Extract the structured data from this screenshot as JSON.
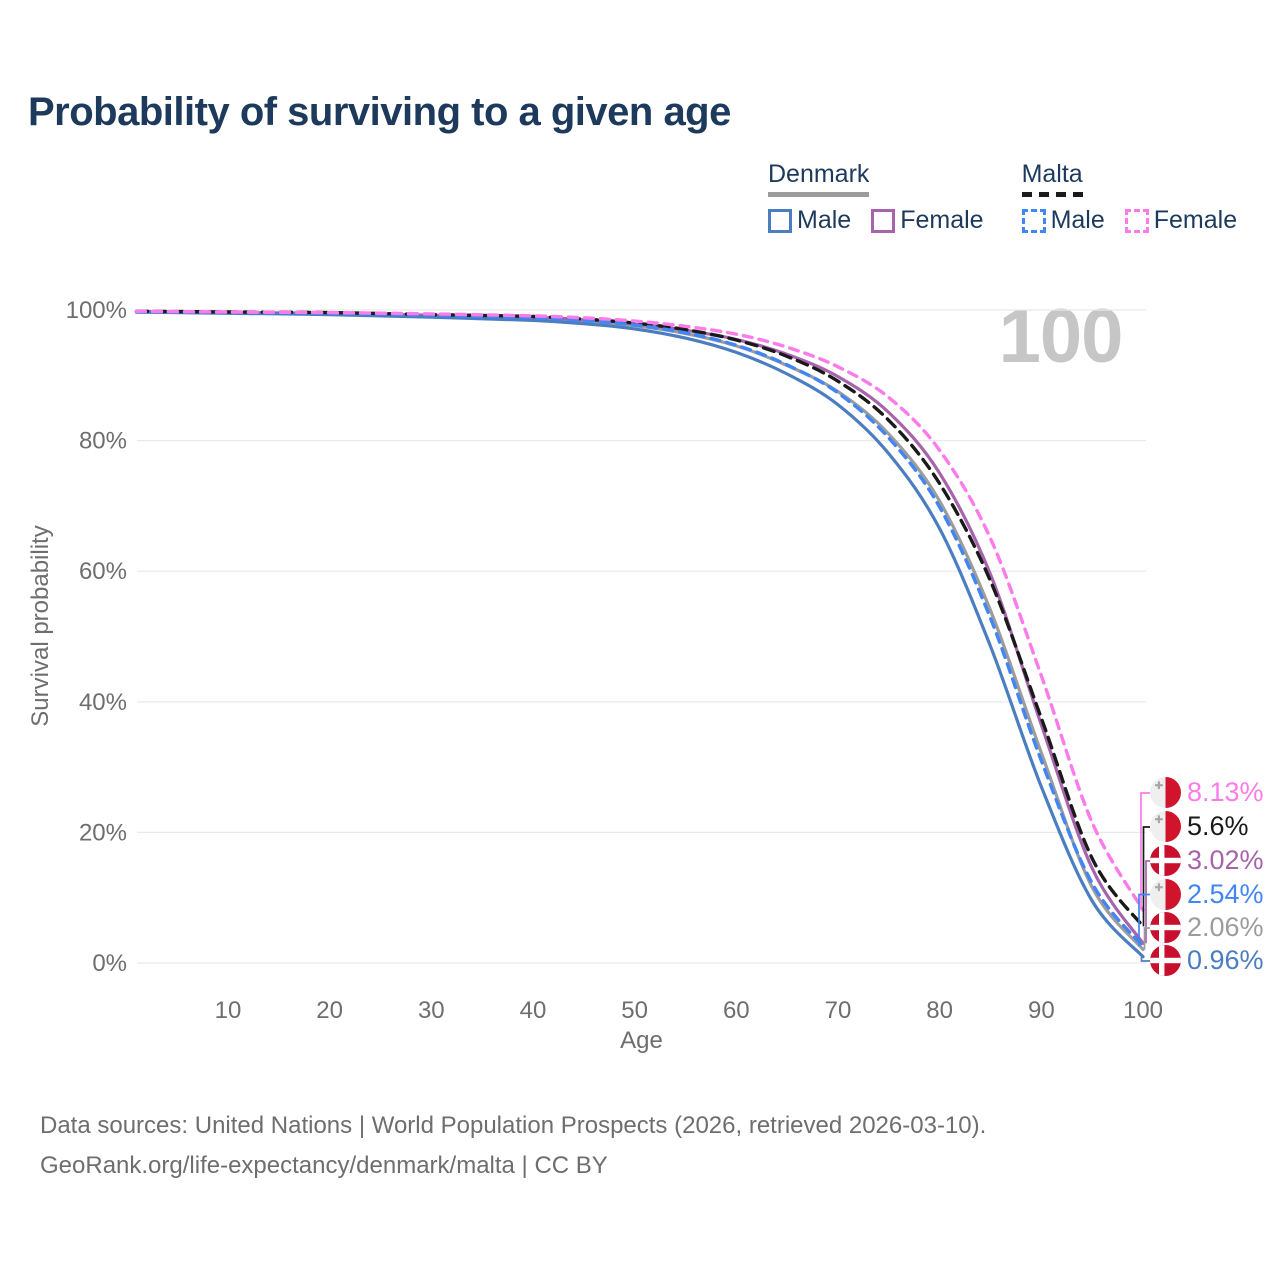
{
  "title": "Probability of surviving to a given age",
  "watermark": "100",
  "colors": {
    "denmark_male": "#4a7ec1",
    "denmark_female": "#a763ab",
    "denmark_all": "#9c9c9c",
    "malta_male": "#4285f4",
    "malta_female": "#fb7bea",
    "malta_all": "#1a1a1a",
    "grid": "#e9e9e9",
    "axis_text": "#6e6e6e",
    "heading_text": "#1d3a5c",
    "denmark_flag_red": "#c8102e",
    "malta_flag_red": "#cf142b"
  },
  "legend": {
    "groups": [
      {
        "name": "Denmark",
        "underline_style": "solid",
        "items": [
          {
            "label": "Male",
            "color": "#4a7ec1",
            "dashed": false
          },
          {
            "label": "Female",
            "color": "#a763ab",
            "dashed": false
          }
        ]
      },
      {
        "name": "Malta",
        "underline_style": "dashed",
        "items": [
          {
            "label": "Male",
            "color": "#4285f4",
            "dashed": true
          },
          {
            "label": "Female",
            "color": "#fb7bea",
            "dashed": true
          }
        ]
      }
    ]
  },
  "chart_data": {
    "type": "line",
    "xlabel": "Age",
    "ylabel": "Survival probability",
    "xlim": [
      0,
      100
    ],
    "ylim": [
      0,
      100
    ],
    "x_ticks": [
      10,
      20,
      30,
      40,
      50,
      60,
      70,
      80,
      90,
      100
    ],
    "y_tick_values": [
      0,
      20,
      40,
      60,
      80,
      100
    ],
    "y_tick_labels": [
      "0%",
      "20%",
      "40%",
      "60%",
      "80%",
      "100%"
    ],
    "grid": "horizontal-only",
    "legend_position": "top-right",
    "hovered_age": 100,
    "ages": [
      1,
      10,
      20,
      30,
      40,
      45,
      50,
      55,
      60,
      65,
      70,
      75,
      80,
      85,
      90,
      95,
      100
    ],
    "series": [
      {
        "id": "denmark-all",
        "country": "Denmark",
        "group": "All",
        "color": "#9c9c9c",
        "dash": null,
        "values": [
          99.7,
          99.6,
          99.4,
          99.1,
          98.7,
          98.3,
          97.6,
          96.4,
          94.5,
          91.5,
          87.5,
          81.0,
          70.7,
          54.0,
          32.2,
          11.6,
          2.06
        ],
        "end_label": "2.06%"
      },
      {
        "id": "denmark-female",
        "country": "Denmark",
        "group": "Female",
        "color": "#a763ab",
        "dash": null,
        "values": [
          99.8,
          99.6,
          99.5,
          99.2,
          98.9,
          98.5,
          97.9,
          96.9,
          95.5,
          93.2,
          89.8,
          84.3,
          75.0,
          59.5,
          36.5,
          14.5,
          3.02
        ],
        "end_label": "3.02%"
      },
      {
        "id": "denmark-male",
        "country": "Denmark",
        "group": "Male",
        "color": "#4a7ec1",
        "dash": null,
        "values": [
          99.7,
          99.5,
          99.3,
          98.9,
          98.4,
          97.9,
          97.1,
          95.7,
          93.5,
          90.2,
          85.5,
          78.0,
          66.5,
          48.5,
          27.0,
          9.5,
          0.96
        ],
        "end_label": "0.96%"
      },
      {
        "id": "malta-all",
        "country": "Malta",
        "group": "All",
        "color": "#1a1a1a",
        "dash": [
          11,
          7
        ],
        "values": [
          99.8,
          99.7,
          99.6,
          99.3,
          99.0,
          98.6,
          98.0,
          97.0,
          95.4,
          92.9,
          89.1,
          83.1,
          73.4,
          58.5,
          37.5,
          16.0,
          5.6
        ],
        "end_label": "5.6%"
      },
      {
        "id": "malta-male",
        "country": "Malta",
        "group": "Male",
        "color": "#4285f4",
        "dash": [
          9,
          7
        ],
        "values": [
          99.7,
          99.6,
          99.5,
          99.2,
          98.8,
          98.4,
          97.7,
          96.5,
          94.6,
          91.6,
          87.3,
          80.4,
          69.8,
          52.8,
          31.0,
          12.2,
          2.54
        ],
        "end_label": "2.54%"
      },
      {
        "id": "malta-female",
        "country": "Malta",
        "group": "Female",
        "color": "#fb7bea",
        "dash": [
          9,
          7
        ],
        "values": [
          99.8,
          99.7,
          99.6,
          99.4,
          99.1,
          98.8,
          98.3,
          97.5,
          96.3,
          94.3,
          91.3,
          86.6,
          78.5,
          65.0,
          44.0,
          21.5,
          8.13
        ],
        "end_label": "8.13%"
      }
    ]
  },
  "end_labels": [
    {
      "series": "malta-female",
      "text": "8.13%",
      "color": "#fb7bea",
      "flag": "malta"
    },
    {
      "series": "malta-all",
      "text": "5.6%",
      "color": "#1a1a1a",
      "flag": "malta"
    },
    {
      "series": "denmark-female",
      "text": "3.02%",
      "color": "#a763ab",
      "flag": "denmark"
    },
    {
      "series": "malta-male",
      "text": "2.54%",
      "color": "#4285f4",
      "flag": "malta"
    },
    {
      "series": "denmark-all",
      "text": "2.06%",
      "color": "#9c9c9c",
      "flag": "denmark"
    },
    {
      "series": "denmark-male",
      "text": "0.96%",
      "color": "#4a7ec1",
      "flag": "denmark"
    }
  ],
  "footer": {
    "line1": "Data sources: United Nations | World Population Prospects (2026, retrieved 2026-03-10).",
    "line2": "GeoRank.org/life-expectancy/denmark/malta | CC BY"
  }
}
